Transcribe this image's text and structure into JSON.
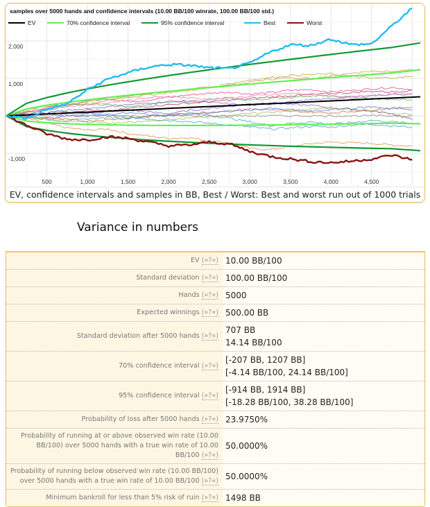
{
  "chart": {
    "caption": "EV, confidence intervals and samples in BB, Best / Worst: Best and worst run out of 1000 trials"
  },
  "section_title": "Variance in numbers",
  "help_label": "(»?«)",
  "stats": [
    {
      "label": "EV",
      "values": [
        "10.00 BB/100"
      ]
    },
    {
      "label": "Standard deviation",
      "values": [
        "100.00 BB/100"
      ]
    },
    {
      "label": "Hands",
      "values": [
        "5000"
      ]
    },
    {
      "label": "Expected winnings",
      "values": [
        "500.00 BB"
      ]
    },
    {
      "label": "Standard deviation after 5000 hands",
      "values": [
        "707 BB",
        "14.14 BB/100"
      ]
    },
    {
      "label": "70% confidence interval",
      "values": [
        "[-207 BB, 1207 BB]",
        "[-4.14 BB/100, 24.14 BB/100]"
      ]
    },
    {
      "label": "95% confidence interval",
      "values": [
        "[-914 BB, 1914 BB]",
        "[-18.28 BB/100, 38.28 BB/100]"
      ]
    },
    {
      "label": "Probability of loss after 5000 hands",
      "values": [
        "23.9750%"
      ]
    },
    {
      "label": "Probability of running at or above observed win rate (10.00 BB/100) over 5000 hands with a true win rate of 10.00 BB/100",
      "values": [
        "50.0000%"
      ]
    },
    {
      "label": "Probability of running below observed win rate (10.00 BB/100) over 5000 hands with a true win rate of 10.00 BB/100",
      "values": [
        "50.0000%"
      ]
    },
    {
      "label": "Minimum bankroll for less than 5% risk of ruin",
      "values": [
        "1498 BB"
      ]
    }
  ],
  "chart_data": {
    "type": "line",
    "title": "samples over 5000 hands and confidence intervals (10.00 BB/100 winrate, 100.00 BB/100 std.)",
    "xlabel": "",
    "ylabel": "",
    "caption": "EV, confidence intervals and samples in BB, Best / Worst: Best and worst run out of 1000 trials",
    "xlim": [
      0,
      5100
    ],
    "ylim": [
      -1850,
      3000
    ],
    "grid": true,
    "legend_position": "top-left",
    "x_ticks": [
      500,
      1000,
      1500,
      2000,
      2500,
      3000,
      3500,
      4000,
      4500
    ],
    "x_tick_labels": [
      "500",
      "1,000",
      "1,500",
      "2,000",
      "2,500",
      "3,000",
      "3,500",
      "4,000",
      "4,500"
    ],
    "y_ticks": [
      -1000,
      1000,
      2000
    ],
    "y_tick_labels": [
      "-1,000",
      "1,000",
      "2,000"
    ],
    "legend": [
      {
        "name": "EV",
        "color": "#000000"
      },
      {
        "name": "70% confidence interval",
        "color": "#66ee55"
      },
      {
        "name": "95% confidence interval",
        "color": "#119933"
      },
      {
        "name": "Best",
        "color": "#22bbee"
      },
      {
        "name": "Worst",
        "color": "#881111"
      }
    ],
    "x": [
      0,
      250,
      500,
      750,
      1000,
      1250,
      1500,
      1750,
      2000,
      2250,
      2500,
      2750,
      3000,
      3250,
      3500,
      3750,
      4000,
      4250,
      4500,
      4750,
      5000
    ],
    "series": [
      {
        "name": "EV",
        "role": "ev",
        "color": "#000000",
        "values": [
          0,
          25,
          50,
          75,
          100,
          125,
          150,
          175,
          200,
          225,
          250,
          275,
          300,
          325,
          350,
          375,
          400,
          425,
          450,
          475,
          500
        ]
      },
      {
        "name": "70% upper",
        "role": "ci70",
        "color": "#66ee55",
        "values": [
          0,
          189,
          282,
          359,
          427,
          489,
          548,
          603,
          655,
          706,
          755,
          802,
          848,
          893,
          937,
          980,
          1023,
          1064,
          1105,
          1145,
          1207
        ]
      },
      {
        "name": "70% lower",
        "role": "ci70",
        "color": "#66ee55",
        "values": [
          0,
          -139,
          -182,
          -209,
          -227,
          -239,
          -248,
          -253,
          -255,
          -256,
          -255,
          -252,
          -248,
          -243,
          -237,
          -230,
          -223,
          -214,
          -205,
          -195,
          -207
        ]
      },
      {
        "name": "95% upper",
        "role": "ci95",
        "color": "#119933",
        "values": [
          0,
          335,
          488,
          612,
          720,
          818,
          909,
          995,
          1077,
          1155,
          1230,
          1303,
          1374,
          1442,
          1509,
          1575,
          1640,
          1703,
          1765,
          1826,
          1914
        ]
      },
      {
        "name": "95% lower",
        "role": "ci95",
        "color": "#119933",
        "values": [
          0,
          -285,
          -388,
          -462,
          -520,
          -568,
          -609,
          -645,
          -677,
          -705,
          -730,
          -753,
          -774,
          -792,
          -809,
          -825,
          -840,
          -853,
          -865,
          -876,
          -914
        ]
      },
      {
        "name": "Best",
        "role": "best",
        "color": "#22bbee",
        "values": [
          0,
          -70,
          180,
          320,
          700,
          980,
          1150,
          1300,
          1370,
          1350,
          1280,
          1260,
          1400,
          1700,
          1900,
          1880,
          2050,
          1900,
          1920,
          2400,
          2870
        ]
      },
      {
        "name": "Worst",
        "role": "worst",
        "color": "#881111",
        "values": [
          0,
          -250,
          -480,
          -620,
          -640,
          -560,
          -600,
          -700,
          -800,
          -780,
          -700,
          -750,
          -950,
          -1080,
          -1150,
          -1220,
          -1250,
          -1210,
          -1150,
          -1050,
          -1170
        ]
      },
      {
        "name": "sample",
        "role": "sample",
        "color": "#cc9944",
        "values": [
          0,
          80,
          200,
          320,
          300,
          420,
          520,
          600,
          640,
          700,
          760,
          820,
          900,
          980,
          1020,
          1000,
          1080,
          1150,
          1180,
          1200,
          1240
        ]
      },
      {
        "name": "sample",
        "role": "sample",
        "color": "#e08a3a",
        "values": [
          0,
          -60,
          -200,
          -320,
          -380,
          -350,
          -470,
          -540,
          -600,
          -580,
          -670,
          -720,
          -870,
          -900,
          -820,
          -740,
          -700,
          -720,
          -730,
          -780,
          -800
        ]
      },
      {
        "name": "sample",
        "role": "sample",
        "color": "#dd4488",
        "values": [
          0,
          120,
          220,
          280,
          400,
          460,
          380,
          420,
          500,
          560,
          600,
          640,
          580,
          620,
          680,
          700,
          640,
          680,
          720,
          760,
          700
        ]
      },
      {
        "name": "sample",
        "role": "sample",
        "color": "#4499cc",
        "values": [
          0,
          60,
          140,
          120,
          60,
          20,
          -40,
          -80,
          -120,
          -150,
          -200,
          -240,
          -300,
          -350,
          -320,
          -280,
          -300,
          -250,
          -220,
          -270,
          -300
        ]
      },
      {
        "name": "sample",
        "role": "sample",
        "color": "#8855cc",
        "values": [
          0,
          -40,
          -60,
          -20,
          60,
          120,
          160,
          100,
          60,
          140,
          200,
          260,
          320,
          360,
          300,
          280,
          220,
          180,
          120,
          60,
          -100
        ]
      },
      {
        "name": "sample",
        "role": "sample",
        "color": "#55aa66",
        "values": [
          0,
          90,
          160,
          260,
          320,
          300,
          260,
          300,
          360,
          380,
          440,
          460,
          420,
          460,
          500,
          540,
          520,
          480,
          460,
          440,
          420
        ]
      },
      {
        "name": "sample",
        "role": "sample",
        "color": "#bb3355",
        "values": [
          0,
          20,
          60,
          100,
          160,
          120,
          200,
          260,
          300,
          340,
          380,
          420,
          460,
          500,
          540,
          560,
          600,
          620,
          660,
          640,
          680
        ]
      },
      {
        "name": "sample",
        "role": "sample",
        "color": "#33aaaa",
        "values": [
          0,
          -20,
          -100,
          -140,
          -80,
          -40,
          -60,
          -20,
          40,
          80,
          20,
          -60,
          -160,
          -260,
          -200,
          -160,
          -220,
          -180,
          -120,
          -160,
          -200
        ]
      },
      {
        "name": "sample",
        "role": "sample",
        "color": "#aaaa33",
        "values": [
          0,
          150,
          260,
          300,
          380,
          440,
          500,
          560,
          620,
          680,
          760,
          860,
          960,
          1020,
          1080,
          1100,
          1120,
          1060,
          1000,
          1020,
          1040
        ]
      },
      {
        "name": "sample",
        "role": "sample",
        "color": "#7766bb",
        "values": [
          0,
          40,
          80,
          140,
          200,
          240,
          300,
          340,
          380,
          400,
          360,
          320,
          280,
          320,
          380,
          420,
          460,
          500,
          540,
          580,
          600
        ]
      },
      {
        "name": "sample",
        "role": "sample",
        "color": "#cc6633",
        "values": [
          0,
          -30,
          -60,
          -100,
          -140,
          -100,
          -60,
          -20,
          20,
          60,
          100,
          140,
          180,
          160,
          120,
          100,
          80,
          120,
          160,
          200,
          240
        ]
      },
      {
        "name": "sample",
        "role": "sample",
        "color": "#ee77aa",
        "values": [
          0,
          100,
          200,
          250,
          300,
          350,
          420,
          480,
          520,
          480,
          440,
          480,
          520,
          560,
          600,
          580,
          540,
          500,
          540,
          580,
          560
        ]
      },
      {
        "name": "sample",
        "role": "sample",
        "color": "#5577dd",
        "values": [
          0,
          30,
          60,
          20,
          -20,
          40,
          80,
          40,
          0,
          40,
          80,
          120,
          160,
          200,
          160,
          120,
          160,
          200,
          240,
          200,
          160
        ]
      },
      {
        "name": "sample",
        "role": "sample",
        "color": "#99bb44",
        "values": [
          0,
          -50,
          -90,
          -120,
          -160,
          -200,
          -180,
          -140,
          -100,
          -60,
          -20,
          20,
          60,
          100,
          140,
          180,
          200,
          160,
          120,
          80,
          40
        ]
      },
      {
        "name": "sample",
        "role": "sample",
        "color": "#888888",
        "values": [
          0,
          0,
          0,
          0,
          0,
          0,
          0,
          0,
          0,
          0,
          0,
          0,
          0,
          0,
          0,
          0,
          0,
          0,
          0,
          0,
          0
        ]
      }
    ]
  }
}
